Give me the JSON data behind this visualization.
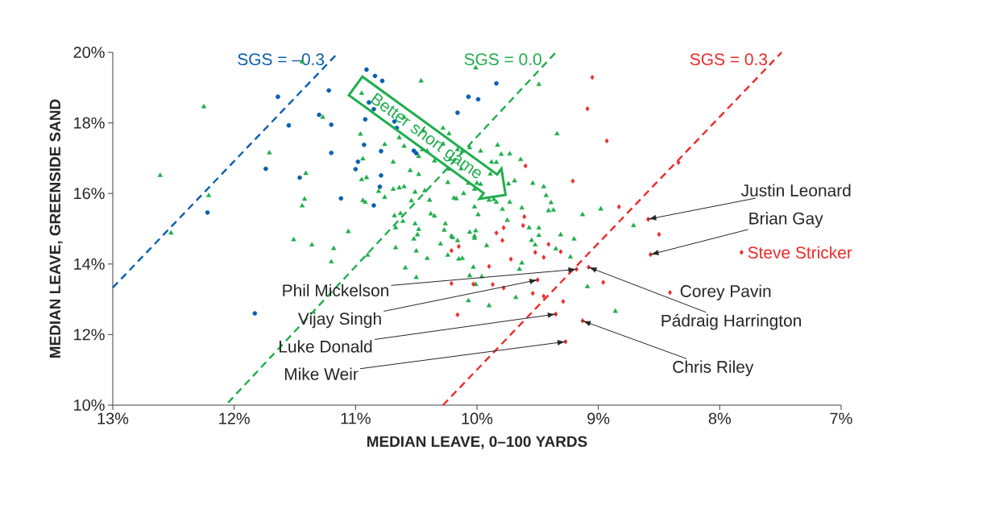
{
  "chart_data": {
    "type": "scatter",
    "xlabel": "MEDIAN LEAVE, 0–100 YARDS",
    "ylabel": "MEDIAN LEAVE, GREENSIDE SAND",
    "xlim": [
      13,
      7
    ],
    "ylim": [
      10,
      20
    ],
    "xticks": [
      {
        "value": 13,
        "label": "13%"
      },
      {
        "value": 12,
        "label": "12%"
      },
      {
        "value": 11,
        "label": "11%"
      },
      {
        "value": 10,
        "label": "10%"
      },
      {
        "value": 9,
        "label": "9%"
      },
      {
        "value": 8,
        "label": "8%"
      },
      {
        "value": 7,
        "label": "7%"
      }
    ],
    "yticks": [
      {
        "value": 10,
        "label": "10%"
      },
      {
        "value": 12,
        "label": "12%"
      },
      {
        "value": 14,
        "label": "14%"
      },
      {
        "value": 16,
        "label": "16%"
      },
      {
        "value": 18,
        "label": "18%"
      },
      {
        "value": 20,
        "label": "20%"
      }
    ],
    "series": [
      {
        "type": "line",
        "name": "SGS = –0.3",
        "color": "#0a5fb0",
        "line_style": "dashed",
        "x": [
          13,
          11.14
        ],
        "values": [
          13.33,
          20
        ]
      },
      {
        "type": "line",
        "name": "SGS = 0.0",
        "color": "#1eae4c",
        "line_style": "dashed",
        "x": [
          12.05,
          9.35
        ],
        "values": [
          10.07,
          20
        ]
      },
      {
        "type": "line",
        "name": "SGS = 0.3",
        "color": "#ee2a2a",
        "line_style": "dashed",
        "x": [
          10.28,
          7.49
        ],
        "values": [
          10,
          20
        ]
      },
      {
        "color": "#0a5fb0",
        "marker": "circle",
        "x": [
          10.91,
          11.64,
          11.22,
          10.89,
          11.3,
          10.92,
          11.55,
          11.2,
          10.93,
          11.2,
          10.98,
          11.74,
          11.0,
          11.46,
          11.12,
          12.22,
          11.83,
          10.84,
          10.78,
          9.84,
          10.85,
          10.07,
          9.99,
          10.16,
          10.68,
          10.66,
          10.79,
          10.52,
          10.5,
          10.79,
          10.8,
          10.85
        ],
        "values": [
          19.51,
          18.74,
          18.92,
          18.58,
          18.23,
          18.1,
          17.93,
          17.95,
          17.38,
          17.15,
          16.9,
          16.7,
          16.69,
          16.45,
          15.86,
          15.46,
          12.6,
          19.33,
          19.19,
          19.12,
          18.39,
          18.74,
          18.67,
          18.29,
          18.04,
          17.86,
          17.2,
          17.21,
          17.14,
          16.51,
          16.19,
          15.66
        ]
      },
      {
        "color": "#1eae4c",
        "marker": "triangle",
        "x": [
          11.44,
          10.95,
          12.25,
          11.27,
          10.96,
          11.71,
          10.94,
          12.61,
          11.41,
          10.91,
          10.95,
          12.21,
          11.42,
          11.44,
          10.94,
          10.92,
          12.52,
          11.06,
          10.01,
          10.46,
          9.49,
          10.6,
          10.44,
          10.28,
          10.23,
          9.34,
          10.64,
          10.76,
          10.6,
          10.28,
          10.16,
          10.12,
          10.06,
          9.97,
          9.83,
          10.45,
          10.41,
          10.69,
          10.48,
          10.35,
          10.22,
          9.8,
          9.73,
          9.64,
          9.88,
          9.84,
          10.13,
          10.23,
          10.55,
          10.48,
          9.89,
          10.24,
          10.07,
          10.0,
          9.97,
          9.74,
          9.69,
          9.54,
          9.45,
          10.69,
          10.64,
          10.6,
          10.51,
          10.43,
          10.76,
          10.81,
          10.39,
          10.54,
          10.19,
          10.17,
          10.11,
          10.02,
          9.9,
          9.86,
          9.84,
          9.73,
          9.43,
          9.39,
          9.63,
          10.02,
          9.99,
          9.79,
          9.41,
          9.37,
          9.13,
          8.98,
          10.68,
          10.63,
          10.61,
          10.38,
          10.35,
          10.51,
          10.26,
          10.67,
          10.48,
          10.27,
          10.06,
          10.01,
          9.75,
          9.57,
          9.49,
          9.31,
          10.49,
          10.21,
          10.02,
          9.49,
          8.71,
          11.51,
          11.36,
          11.18,
          11.2,
          10.9,
          10.67,
          10.59,
          10.5,
          10.5,
          10.52,
          10.41,
          10.3,
          10.24,
          10.2,
          10.16,
          10.15,
          10.12,
          10.02,
          10.03,
          10.06,
          10.01,
          10.07,
          9.96,
          9.92,
          9.55,
          9.52,
          9.2,
          9.35,
          9.23,
          9.63,
          9.65,
          9.68,
          9.9,
          9.09,
          8.86
        ],
        "values": [
          19.73,
          18.84,
          18.46,
          18.16,
          17.68,
          17.15,
          16.98,
          16.51,
          16.57,
          16.45,
          16.39,
          15.94,
          15.84,
          15.65,
          15.8,
          15.75,
          14.88,
          14.92,
          19.56,
          19.19,
          19.09,
          18.16,
          17.77,
          17.85,
          17.69,
          17.69,
          17.58,
          17.39,
          17.34,
          17.4,
          17.24,
          17.2,
          17.3,
          17.2,
          17.37,
          17.24,
          17.2,
          16.89,
          17.05,
          16.92,
          16.97,
          17.11,
          17.12,
          16.96,
          16.89,
          16.88,
          16.7,
          16.69,
          16.65,
          16.54,
          16.55,
          16.31,
          16.29,
          16.29,
          16.26,
          16.27,
          16.36,
          16.29,
          16.19,
          16.12,
          16.16,
          16.19,
          16.04,
          16.08,
          15.89,
          16.06,
          15.81,
          15.79,
          15.87,
          15.85,
          16.0,
          16.12,
          15.81,
          15.83,
          15.75,
          15.75,
          15.94,
          15.74,
          15.59,
          15.62,
          15.4,
          15.55,
          15.51,
          15.53,
          15.4,
          15.56,
          15.37,
          15.43,
          15.21,
          15.42,
          15.36,
          15.14,
          15.14,
          15.03,
          14.98,
          14.96,
          14.9,
          14.94,
          15.24,
          15.03,
          15.02,
          14.83,
          14.83,
          14.79,
          14.79,
          14.81,
          15.09,
          14.69,
          14.54,
          14.44,
          14.06,
          14.25,
          14.46,
          13.89,
          14.37,
          13.62,
          14.71,
          14.16,
          14.57,
          14.25,
          14.75,
          14.66,
          14.14,
          14.16,
          14.73,
          13.91,
          13.67,
          13.42,
          12.96,
          13.64,
          14.52,
          14.67,
          14.54,
          14.71,
          14.43,
          14.2,
          14.03,
          13.85,
          13.05,
          12.82,
          13.36,
          12.66
        ]
      },
      {
        "color": "#ee2a2a",
        "marker": "diamond",
        "x": [
          9.05,
          9.09,
          8.93,
          9.6,
          9.21,
          8.83,
          9.61,
          9.62,
          9.78,
          9.84,
          8.34,
          8.59,
          8.5,
          10.21,
          10.15,
          10.21,
          10.03,
          10.16,
          9.79,
          9.41,
          9.31,
          9.52,
          9.45,
          9.72,
          9.9,
          9.18,
          9.08,
          8.96,
          8.57,
          8.41,
          9.5,
          9.87,
          9.78,
          9.54,
          9.45,
          9.29,
          9.35,
          9.13,
          9.27
        ],
        "values": [
          19.29,
          18.4,
          17.49,
          16.78,
          16.35,
          15.62,
          15.34,
          15.09,
          15.03,
          14.88,
          16.88,
          15.27,
          14.84,
          14.38,
          14.5,
          13.45,
          13.43,
          12.56,
          14.67,
          14.56,
          14.35,
          14.33,
          14.19,
          14.14,
          13.93,
          13.85,
          13.91,
          13.48,
          14.27,
          13.19,
          13.55,
          13.42,
          13.32,
          13.17,
          13.09,
          12.94,
          12.58,
          12.39,
          11.8
        ]
      },
      {
        "name": "Steve Stricker",
        "color": "#ee2a2a",
        "marker": "diamond",
        "x": [
          7.82
        ],
        "values": [
          14.33
        ]
      }
    ],
    "annotations": [
      {
        "text": "Justin Leonard",
        "x": 8.59,
        "y": 15.27
      },
      {
        "text": "Brian Gay",
        "x": 8.57,
        "y": 14.27
      },
      {
        "text": "Corey Pavin",
        "x": 8.41,
        "y": 13.19
      },
      {
        "text": "Pádraig Harrington",
        "x": 9.08,
        "y": 13.91
      },
      {
        "text": "Chris Riley",
        "x": 9.13,
        "y": 12.39
      },
      {
        "text": "Phil Mickelson",
        "x": 9.18,
        "y": 13.85
      },
      {
        "text": "Vijay Singh",
        "x": 9.5,
        "y": 13.55
      },
      {
        "text": "Luke Donald",
        "x": 9.35,
        "y": 12.58
      },
      {
        "text": "Mike Weir",
        "x": 9.27,
        "y": 11.8
      },
      "Better short game"
    ]
  }
}
